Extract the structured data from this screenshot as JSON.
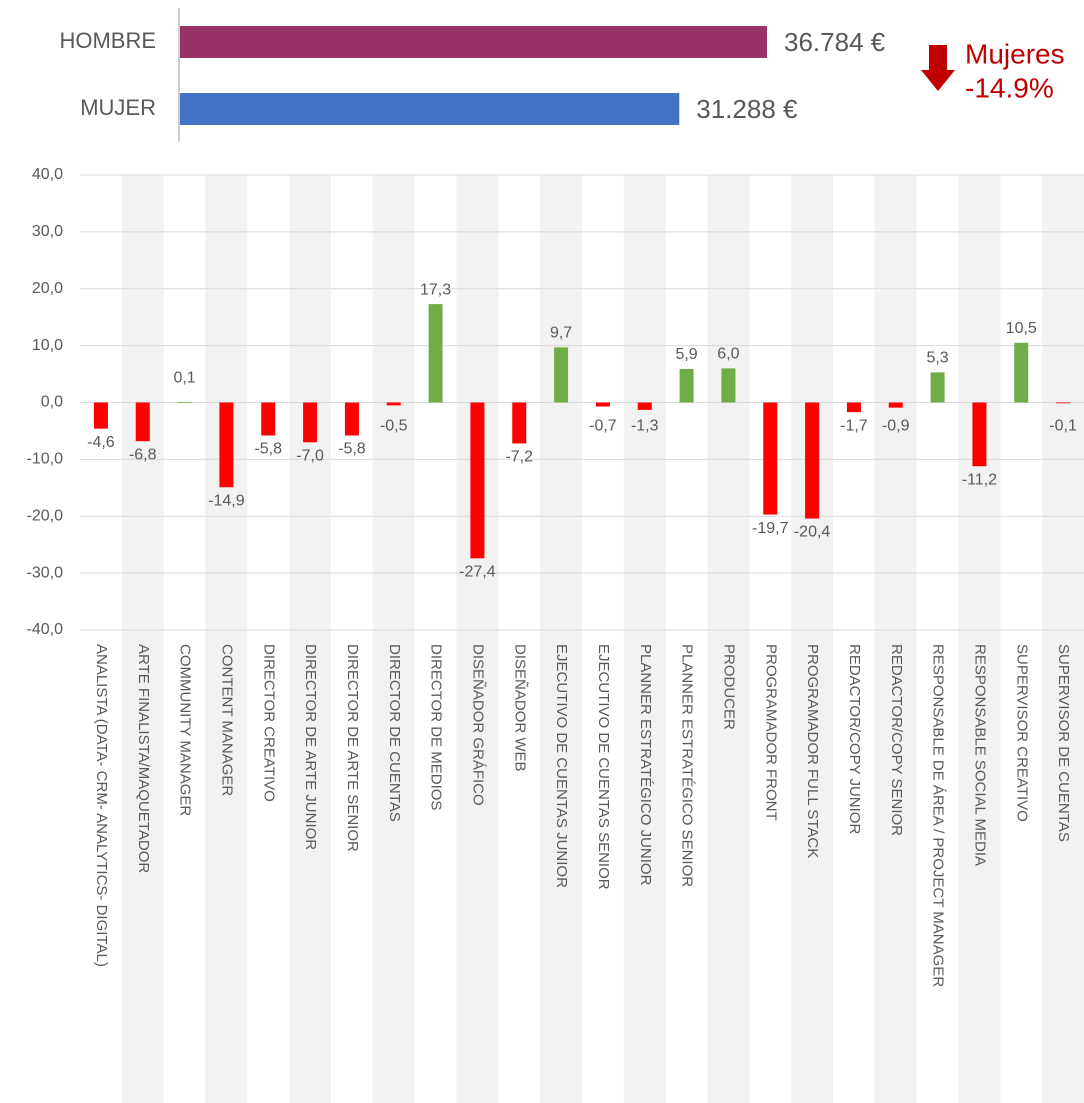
{
  "chart_data": [
    {
      "type": "hbar",
      "categories": [
        "HOMBRE",
        "MUJER"
      ],
      "values": [
        36784,
        31288
      ],
      "value_labels": [
        "36.784 €",
        "31.288 €"
      ],
      "colors": [
        "#983365",
        "#4472c4"
      ],
      "annotations": [
        "Mujeres",
        "-14.9%"
      ],
      "annotation_color": "#c00000"
    },
    {
      "type": "bar",
      "categories": [
        "ANALISTA (DATA- CRM- ANALYTICS- DIGITAL)",
        "ARTE FINALISTA/MAQUETADOR",
        "COMMUNITY MANAGER",
        "CONTENT MANAGER",
        "DIRECTOR CREATIVO",
        "DIRECTOR DE ARTE JUNIOR",
        "DIRECTOR DE ARTE SENIOR",
        "DIRECTOR DE CUENTAS",
        "DIRECTOR DE MEDIOS",
        "DISEÑADOR GRÁFICO",
        "DISEÑADOR WEB",
        "EJECUTIVO DE CUENTAS JUNIOR",
        "EJECUTIVO DE CUENTAS SENIOR",
        "PLANNER ESTRATÉGICO JUNIOR",
        "PLANNER ESTRATÉGICO SENIOR",
        "PRODUCER",
        "PROGRAMADOR FRONT",
        "PROGRAMADOR FULL STACK",
        "REDACTOR/COPY JUNIOR",
        "REDACTOR/COPY SENIOR",
        "RESPONSABLE DE ÁREA / PROJECT MANAGER",
        "RESPONSABLE SOCIAL MEDIA",
        "SUPERVISOR CREATIVO",
        "SUPERVISOR DE CUENTAS"
      ],
      "values": [
        -4.6,
        -6.8,
        0.1,
        -14.9,
        -5.8,
        -7.0,
        -5.8,
        -0.5,
        17.3,
        -27.4,
        -7.2,
        9.7,
        -0.7,
        -1.3,
        5.9,
        6.0,
        -19.7,
        -20.4,
        -1.7,
        -0.9,
        5.3,
        -11.2,
        10.5,
        -0.1
      ],
      "value_labels": [
        "-4,6",
        "-6,8",
        "0,1",
        "-14,9",
        "-5,8",
        "-7,0",
        "-5,8",
        "-0,5",
        "17,3",
        "-27,4",
        "-7,2",
        "9,7",
        "-0,7",
        "-1,3",
        "5,9",
        "6,0",
        "-19,7",
        "-20,4",
        "-1,7",
        "-0,9",
        "5,3",
        "-11,2",
        "10,5",
        "-0,1"
      ],
      "positive_color": "#70ad47",
      "negative_color": "#ff0000",
      "ylim": [
        -40,
        40
      ],
      "yticks": [
        {
          "value": -40,
          "label": "-40,0"
        },
        {
          "value": -30,
          "label": "-30,0"
        },
        {
          "value": -20,
          "label": "-20,0"
        },
        {
          "value": -10,
          "label": "-10,0"
        },
        {
          "value": 0,
          "label": "0,0"
        },
        {
          "value": 10,
          "label": "10,0"
        },
        {
          "value": 20,
          "label": "20,0"
        },
        {
          "value": 30,
          "label": "30,0"
        },
        {
          "value": 40,
          "label": "40,0"
        }
      ],
      "grid": true
    }
  ]
}
